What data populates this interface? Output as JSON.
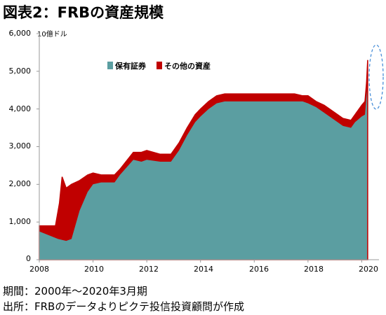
{
  "title": "図表2：FRBの資産規模",
  "chart_data": {
    "type": "area",
    "title": "図表2：FRBの資産規模",
    "unit_label": "10億ドル",
    "ylim": [
      0,
      6000
    ],
    "yticks": [
      "0",
      "1,000",
      "2,000",
      "3,000",
      "4,000",
      "5,000",
      "6,000"
    ],
    "xlim": [
      2008,
      2020.4
    ],
    "xticks": [
      "2008",
      "2010",
      "2012",
      "2014",
      "2016",
      "2018",
      "2020"
    ],
    "grid": false,
    "legend_position": "top-center",
    "series": [
      {
        "name": "保有証券",
        "color": "#5b9ea1",
        "x": [
          2008.0,
          2008.7,
          2009.0,
          2009.2,
          2009.5,
          2009.8,
          2010.0,
          2010.3,
          2010.5,
          2010.8,
          2011.0,
          2011.5,
          2011.8,
          2012.0,
          2012.5,
          2012.9,
          2013.2,
          2013.5,
          2013.8,
          2014.0,
          2014.3,
          2014.6,
          2014.9,
          2015.5,
          2016.0,
          2016.5,
          2017.0,
          2017.5,
          2017.8,
          2018.0,
          2018.3,
          2018.6,
          2019.0,
          2019.3,
          2019.6,
          2019.75,
          2020.0,
          2020.12,
          2020.2
        ],
        "values": [
          750,
          550,
          500,
          550,
          1300,
          1800,
          2000,
          2050,
          2050,
          2050,
          2250,
          2650,
          2600,
          2650,
          2600,
          2600,
          2900,
          3300,
          3650,
          3800,
          4000,
          4150,
          4200,
          4200,
          4200,
          4200,
          4200,
          4200,
          4200,
          4150,
          4050,
          3900,
          3700,
          3550,
          3500,
          3650,
          3800,
          3850,
          4500
        ]
      },
      {
        "name": "その他の資産",
        "color": "#c00000",
        "x": [
          2008.0,
          2008.6,
          2008.75,
          2008.85,
          2009.0,
          2009.2,
          2009.5,
          2009.8,
          2010.0,
          2010.3,
          2010.5,
          2010.8,
          2011.0,
          2011.5,
          2011.8,
          2012.0,
          2012.5,
          2012.9,
          2013.2,
          2013.5,
          2013.8,
          2014.0,
          2014.3,
          2014.6,
          2014.9,
          2015.5,
          2016.0,
          2016.5,
          2017.0,
          2017.5,
          2017.8,
          2018.0,
          2018.3,
          2018.6,
          2019.0,
          2019.3,
          2019.6,
          2019.75,
          2020.0,
          2020.12,
          2020.18,
          2020.22
        ],
        "values": [
          900,
          900,
          1500,
          2200,
          1900,
          2000,
          2100,
          2250,
          2300,
          2250,
          2250,
          2250,
          2400,
          2850,
          2850,
          2900,
          2800,
          2800,
          3100,
          3500,
          3850,
          4000,
          4200,
          4350,
          4400,
          4400,
          4400,
          4400,
          4400,
          4400,
          4350,
          4350,
          4200,
          4100,
          3900,
          3750,
          3700,
          3850,
          4100,
          4200,
          4700,
          5300
        ]
      }
    ],
    "annotation": "dashed-ellipse-highlight-2020"
  },
  "footnotes": {
    "period": "期間：2000年～2020年3月期",
    "source": "出所：FRBのデータよりピクテ投信投資顧問が作成"
  }
}
